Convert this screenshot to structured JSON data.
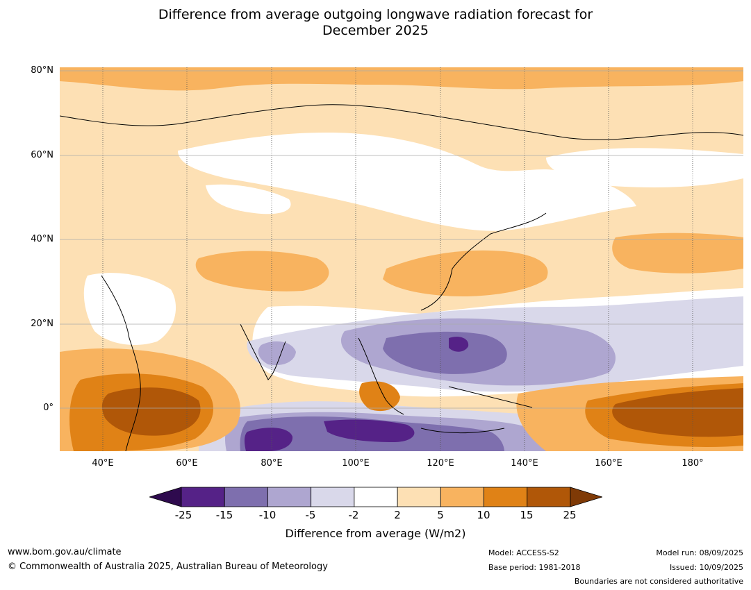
{
  "title": {
    "line1": "Difference from average outgoing longwave radiation forecast for",
    "line2": "December 2025"
  },
  "map": {
    "lat_labels": [
      "80°N",
      "60°N",
      "40°N",
      "20°N",
      "0°"
    ],
    "lon_labels": [
      "40°E",
      "60°E",
      "80°E",
      "100°E",
      "120°E",
      "140°E",
      "160°E",
      "180°"
    ]
  },
  "colorbar": {
    "ticks": [
      "-25",
      "-15",
      "-10",
      "-5",
      "-2",
      "2",
      "5",
      "10",
      "15",
      "25"
    ],
    "colors": {
      "below_min": "#2e0a4e",
      "bins": [
        "#552287",
        "#7e6fae",
        "#aea6d0",
        "#d9d8ea",
        "#ffffff",
        "#fde0b4",
        "#f8b35f",
        "#e08216",
        "#b05708"
      ],
      "above_max": "#7f3a06"
    },
    "label": "Difference from average (W/m2)"
  },
  "footer": {
    "website": "www.bom.gov.au/climate",
    "copyright": "© Commonwealth of Australia 2025, Australian Bureau of Meteorology",
    "model": "Model: ACCESS-S2",
    "base_period": "Base period: 1981-2018",
    "model_run": "Model run: 08/09/2025",
    "issued": "Issued: 10/09/2025",
    "disclaimer": "Boundaries are not considered authoritative"
  }
}
